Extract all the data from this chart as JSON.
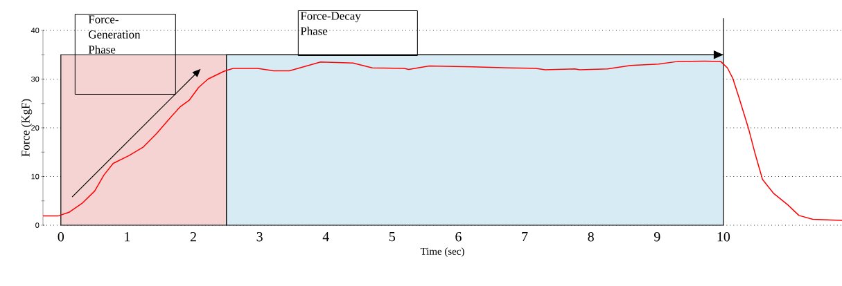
{
  "chart_data": {
    "type": "line",
    "xlabel": "Time (sec)",
    "ylabel": "Force (KgF)",
    "xlim": [
      -0.27,
      11.79
    ],
    "ylim": [
      0,
      40
    ],
    "xticks": [
      0,
      1,
      2,
      3,
      4,
      5,
      6,
      7,
      8,
      9,
      10
    ],
    "yticks": [
      0,
      {
        "value": 5,
        "label": null
      },
      10,
      {
        "value": 15,
        "label": null
      },
      20,
      {
        "value": 25,
        "label": null
      },
      30,
      {
        "value": 35,
        "label": null
      },
      40
    ],
    "grid": "y",
    "marker": "none",
    "line_style": "solid",
    "bands": [
      {
        "axis": "x",
        "from": 0,
        "to": 2.5,
        "label": "Force-Generation Phase",
        "color": "#f5d3d3"
      },
      {
        "axis": "x",
        "from": 2.5,
        "to": 10,
        "label": "Force-Decay Phase",
        "color": "#d6ebf4"
      }
    ],
    "series": [
      {
        "color": "#ff0000",
        "x": [
          -0.27,
          -0.04,
          0.13,
          0.33,
          0.51,
          0.65,
          0.79,
          1.03,
          1.24,
          1.45,
          1.66,
          1.8,
          1.94,
          2.08,
          2.22,
          2.46,
          2.6,
          2.97,
          3.21,
          3.45,
          3.68,
          3.92,
          4.17,
          4.41,
          4.7,
          5.18,
          5.25,
          5.56,
          6.22,
          6.75,
          7.17,
          7.31,
          7.76,
          7.83,
          8.25,
          8.6,
          9.02,
          9.3,
          9.72,
          9.96,
          10.06,
          10.14,
          10.24,
          10.38,
          10.48,
          10.59,
          10.76,
          10.97,
          11.14,
          11.35,
          11.79
        ],
        "values": [
          1.9,
          1.9,
          2.7,
          4.6,
          7.0,
          10.3,
          12.7,
          14.3,
          16.0,
          18.9,
          22.2,
          24.3,
          25.7,
          28.3,
          30.0,
          31.6,
          32.2,
          32.2,
          31.7,
          31.7,
          32.6,
          33.5,
          33.4,
          33.3,
          32.3,
          32.2,
          32.0,
          32.7,
          32.5,
          32.3,
          32.2,
          31.9,
          32.1,
          31.9,
          32.1,
          32.8,
          33.1,
          33.6,
          33.7,
          33.6,
          32.3,
          30.2,
          26.0,
          19.8,
          14.6,
          9.4,
          6.5,
          4.2,
          2.0,
          1.2,
          1.0
        ]
      }
    ]
  }
}
